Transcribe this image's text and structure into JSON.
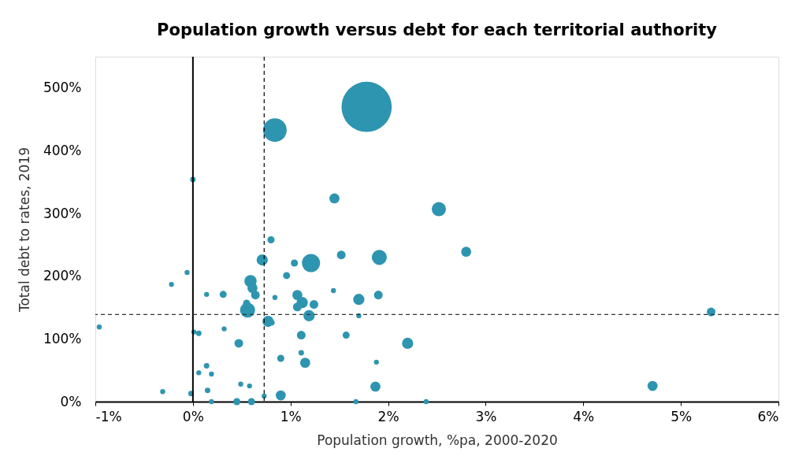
{
  "chart_data": {
    "type": "bubble",
    "title": "Population growth versus debt for each territorial authority",
    "xlabel": "Population growth, %pa, 2000-2020",
    "ylabel": "Total debt to rates, 2019",
    "x": [
      1.78,
      0.84,
      0,
      1.45,
      2.52,
      2.8,
      1.91,
      1.21,
      0.71,
      0.8,
      1.04,
      1.52,
      0.96,
      0.59,
      0.61,
      0.64,
      0.55,
      0.56,
      0.31,
      0.14,
      -0.22,
      -0.06,
      0.84,
      1.07,
      1.12,
      1.24,
      1.07,
      1.19,
      1.7,
      1.9,
      1.44,
      1.7,
      0.77,
      0.81,
      1.11,
      1.57,
      2.2,
      0.47,
      0.01,
      0.06,
      0.32,
      -0.96,
      0.9,
      1.11,
      1.15,
      1.88,
      0.14,
      0.19,
      0.06,
      0.49,
      0.58,
      0.9,
      0.73,
      1.87,
      -0.31,
      -0.02,
      0.15,
      0.45,
      0.6,
      0.19,
      2.39,
      4.71,
      5.31,
      1.67
    ],
    "series": [
      {
        "color": "#2e95b0",
        "values": [
          470,
          433,
          354,
          324,
          307,
          239,
          230,
          221,
          226,
          258,
          221,
          234,
          201,
          192,
          181,
          170,
          157,
          146,
          171,
          171,
          187,
          206,
          166,
          170,
          158,
          155,
          151,
          137,
          163,
          170,
          177,
          137,
          128,
          126,
          106,
          106,
          93,
          93,
          111,
          109,
          116,
          119,
          69,
          78,
          62,
          63,
          57,
          44,
          46,
          28,
          25,
          10,
          9,
          24,
          16,
          13,
          18,
          0,
          0,
          0,
          0,
          25,
          143,
          0
        ],
        "sizes": [
          1,
          0.22,
          0.012,
          0.04,
          0.08,
          0.04,
          0.09,
          0.13,
          0.05,
          0.02,
          0.02,
          0.03,
          0.02,
          0.06,
          0.04,
          0.03,
          0.02,
          0.09,
          0.02,
          0.01,
          0.01,
          0.01,
          0.01,
          0.04,
          0.05,
          0.03,
          0.03,
          0.05,
          0.05,
          0.03,
          0.01,
          0.01,
          0.05,
          0.012,
          0.03,
          0.02,
          0.05,
          0.03,
          0.01,
          0.012,
          0.01,
          0.01,
          0.02,
          0.012,
          0.04,
          0.01,
          0.012,
          0.01,
          0.01,
          0.01,
          0.01,
          0.04,
          0.01,
          0.04,
          0.01,
          0.012,
          0.012,
          0.02,
          0.02,
          0.01,
          0.01,
          0.04,
          0.03,
          0.01
        ]
      }
    ],
    "xlim": [
      -1,
      6
    ],
    "xticks": [
      {
        "value": -1,
        "label": "-1%"
      },
      {
        "value": 0,
        "label": "0%"
      },
      {
        "value": 1,
        "label": "1%"
      },
      {
        "value": 2,
        "label": "2%"
      },
      {
        "value": 3,
        "label": "3%"
      },
      {
        "value": 4,
        "label": "4%"
      },
      {
        "value": 5,
        "label": "5%"
      },
      {
        "value": 6,
        "label": "6%"
      }
    ],
    "ylim": [
      0,
      550
    ],
    "yticks": [
      {
        "value": 0,
        "label": "0%"
      },
      {
        "value": 100,
        "label": "100%"
      },
      {
        "value": 200,
        "label": "200%"
      },
      {
        "value": 300,
        "label": "300%"
      },
      {
        "value": 400,
        "label": "400%"
      },
      {
        "value": 500,
        "label": "500%"
      }
    ],
    "ref_lines": [
      {
        "axis": "x",
        "value": 0.73,
        "line_style": "dashed",
        "color": "#000000"
      },
      {
        "axis": "y",
        "value": 139,
        "line_style": "dashed",
        "color": "#333333"
      }
    ],
    "tick_labels": true
  }
}
